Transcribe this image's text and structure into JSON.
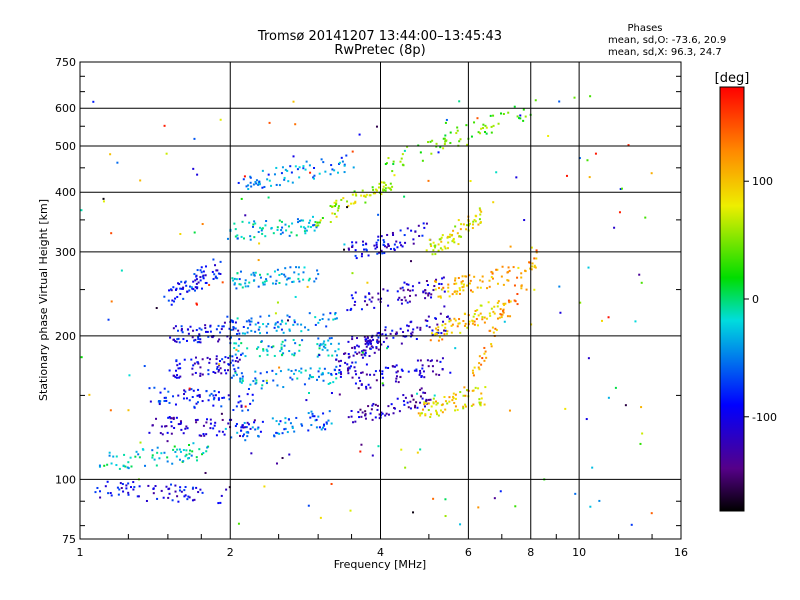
{
  "chart_data": {
    "type": "scatter",
    "title": "Tromsø 20141207 13:44:00–13:45:43",
    "subtitle": "RwPretec (8p)",
    "xlabel": "Frequency [MHz]",
    "ylabel": "Stationary phase Virtual Height [km]",
    "x_scale": "log",
    "y_scale": "log",
    "xlim": [
      1,
      16
    ],
    "ylim": [
      75,
      750
    ],
    "x_ticks": [
      1,
      2,
      4,
      6,
      8,
      10,
      16
    ],
    "y_ticks": [
      75,
      100,
      200,
      300,
      400,
      500,
      600,
      750
    ],
    "grid": true,
    "phase_stats": {
      "heading": "Phases",
      "line1": "mean, sd,O:  -73.6, 20.9",
      "line2": "mean, sd,X:  96.3, 24.7"
    },
    "colorbar": {
      "label": "[deg]",
      "range": [
        -180,
        180
      ],
      "ticks": [
        "100",
        "0",
        "-100"
      ],
      "tick_values": [
        100,
        0,
        -100
      ]
    },
    "traces": [
      {
        "x_start": 1.05,
        "x_end": 2.0,
        "y_start": 95,
        "y_end": 93,
        "phase": -100
      },
      {
        "x_start": 1.1,
        "x_end": 1.8,
        "y_start": 108,
        "y_end": 115,
        "phase": -20
      },
      {
        "x_start": 1.4,
        "x_end": 2.2,
        "y_start": 130,
        "y_end": 128,
        "phase": -110
      },
      {
        "x_start": 1.4,
        "x_end": 2.2,
        "y_start": 150,
        "y_end": 145,
        "phase": -85
      },
      {
        "x_start": 1.5,
        "x_end": 2.1,
        "y_start": 170,
        "y_end": 175,
        "phase": -100
      },
      {
        "x_start": 1.5,
        "x_end": 2.1,
        "y_start": 200,
        "y_end": 205,
        "phase": -95
      },
      {
        "x_start": 1.5,
        "x_end": 1.9,
        "y_start": 240,
        "y_end": 280,
        "phase": -90
      },
      {
        "x_start": 2.0,
        "x_end": 3.3,
        "y_start": 125,
        "y_end": 135,
        "phase": -60
      },
      {
        "x_start": 2.0,
        "x_end": 3.3,
        "y_start": 160,
        "y_end": 165,
        "phase": -40
      },
      {
        "x_start": 2.0,
        "x_end": 3.3,
        "y_start": 185,
        "y_end": 190,
        "phase": -30
      },
      {
        "x_start": 2.0,
        "x_end": 3.3,
        "y_start": 210,
        "y_end": 215,
        "phase": -45
      },
      {
        "x_start": 2.0,
        "x_end": 3.0,
        "y_start": 260,
        "y_end": 270,
        "phase": -35
      },
      {
        "x_start": 2.0,
        "x_end": 3.0,
        "y_start": 330,
        "y_end": 340,
        "phase": -30
      },
      {
        "x_start": 2.1,
        "x_end": 3.5,
        "y_start": 420,
        "y_end": 460,
        "phase": -50
      },
      {
        "x_start": 3.3,
        "x_end": 4.0,
        "y_start": 170,
        "y_end": 200,
        "phase": -110
      },
      {
        "x_start": 3.5,
        "x_end": 5.0,
        "y_start": 135,
        "y_end": 150,
        "phase": -120
      },
      {
        "x_start": 3.5,
        "x_end": 5.5,
        "y_start": 160,
        "y_end": 175,
        "phase": -115
      },
      {
        "x_start": 3.5,
        "x_end": 5.5,
        "y_start": 190,
        "y_end": 215,
        "phase": -110
      },
      {
        "x_start": 3.5,
        "x_end": 5.5,
        "y_start": 235,
        "y_end": 255,
        "phase": -115
      },
      {
        "x_start": 3.5,
        "x_end": 5.0,
        "y_start": 300,
        "y_end": 330,
        "phase": -100
      },
      {
        "x_start": 3.0,
        "x_end": 4.2,
        "y_start": 350,
        "y_end": 420,
        "phase": 60
      },
      {
        "x_start": 4.8,
        "x_end": 6.5,
        "y_start": 140,
        "y_end": 150,
        "phase": 90
      },
      {
        "x_start": 5.0,
        "x_end": 7.0,
        "y_start": 200,
        "y_end": 230,
        "phase": 100
      },
      {
        "x_start": 5.2,
        "x_end": 7.5,
        "y_start": 250,
        "y_end": 270,
        "phase": 110
      },
      {
        "x_start": 5.0,
        "x_end": 6.5,
        "y_start": 300,
        "y_end": 360,
        "phase": 80
      },
      {
        "x_start": 6.0,
        "x_end": 8.3,
        "y_start": 160,
        "y_end": 300,
        "phase": 120
      },
      {
        "x_start": 4.0,
        "x_end": 8.0,
        "y_start": 450,
        "y_end": 600,
        "phase": 40
      }
    ]
  }
}
